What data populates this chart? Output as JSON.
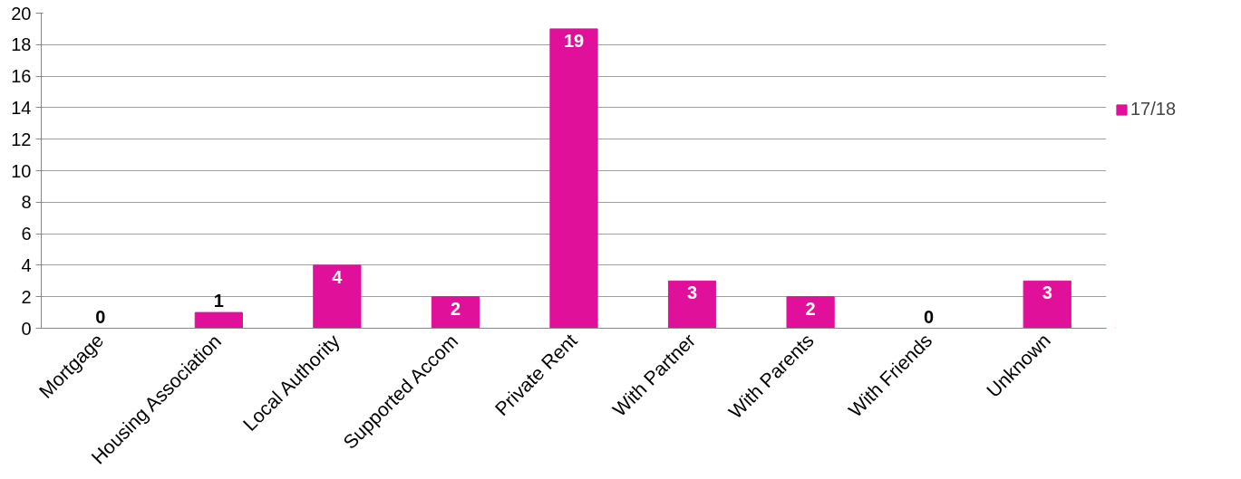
{
  "chart_data": {
    "type": "bar",
    "categories": [
      "Mortgage",
      "Housing Association",
      "Local Authority",
      "Supported Accom",
      "Private Rent",
      "With Partner",
      "With Parents",
      "With Friends",
      "Unknown"
    ],
    "series": [
      {
        "name": "17/18",
        "color": "#e0109a",
        "values": [
          0,
          1,
          4,
          2,
          19,
          3,
          2,
          0,
          3
        ]
      }
    ],
    "ylim": [
      0,
      20
    ],
    "yticks": [
      0,
      2,
      4,
      6,
      8,
      10,
      12,
      14,
      16,
      18,
      20
    ],
    "grid": "y",
    "legend": "right",
    "data_labels": true
  }
}
